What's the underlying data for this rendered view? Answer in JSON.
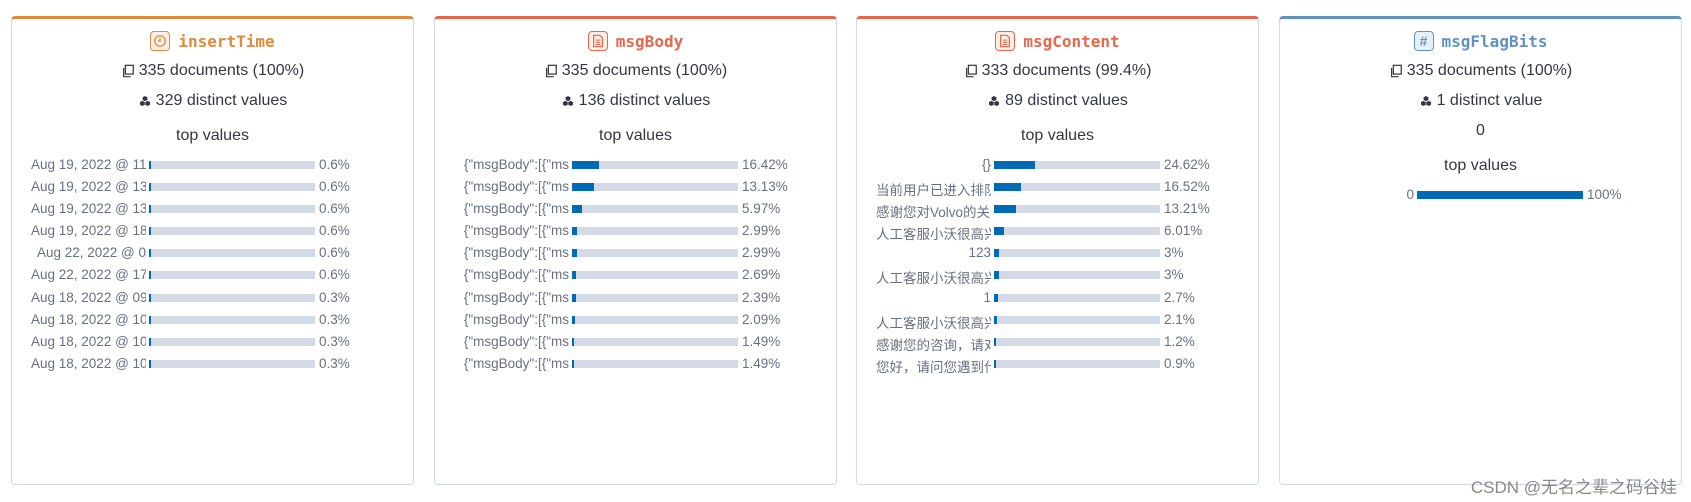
{
  "cards": [
    {
      "type": "date",
      "field": "insertTime",
      "color": "#e08a3b",
      "documents": "335 documents (100%)",
      "distinct": "329 distinct values",
      "top_values_title": "top values",
      "rows": [
        {
          "label": "Aug 19, 2022 @ 11",
          "value": 0.6,
          "value_label": "0.6%"
        },
        {
          "label": "Aug 19, 2022 @ 13",
          "value": 0.6,
          "value_label": "0.6%"
        },
        {
          "label": "Aug 19, 2022 @ 13",
          "value": 0.6,
          "value_label": "0.6%"
        },
        {
          "label": "Aug 19, 2022 @ 18",
          "value": 0.6,
          "value_label": "0.6%"
        },
        {
          "label": "Aug 22, 2022 @ 0",
          "value": 0.6,
          "value_label": "0.6%"
        },
        {
          "label": "Aug 22, 2022 @ 17",
          "value": 0.6,
          "value_label": "0.6%"
        },
        {
          "label": "Aug 18, 2022 @ 09",
          "value": 0.3,
          "value_label": "0.3%"
        },
        {
          "label": "Aug 18, 2022 @ 10",
          "value": 0.3,
          "value_label": "0.3%"
        },
        {
          "label": "Aug 18, 2022 @ 10",
          "value": 0.3,
          "value_label": "0.3%"
        },
        {
          "label": "Aug 18, 2022 @ 10",
          "value": 0.3,
          "value_label": "0.3%"
        }
      ]
    },
    {
      "type": "text",
      "field": "msgBody",
      "color": "#e7664c",
      "documents": "335 documents (100%)",
      "distinct": "136 distinct values",
      "top_values_title": "top values",
      "rows": [
        {
          "label": "{\"msgBody\":[{\"ms",
          "value": 16.42,
          "value_label": "16.42%"
        },
        {
          "label": "{\"msgBody\":[{\"ms",
          "value": 13.13,
          "value_label": "13.13%"
        },
        {
          "label": "{\"msgBody\":[{\"ms",
          "value": 5.97,
          "value_label": "5.97%"
        },
        {
          "label": "{\"msgBody\":[{\"ms",
          "value": 2.99,
          "value_label": "2.99%"
        },
        {
          "label": "{\"msgBody\":[{\"ms",
          "value": 2.99,
          "value_label": "2.99%"
        },
        {
          "label": "{\"msgBody\":[{\"ms",
          "value": 2.69,
          "value_label": "2.69%"
        },
        {
          "label": "{\"msgBody\":[{\"ms",
          "value": 2.39,
          "value_label": "2.39%"
        },
        {
          "label": "{\"msgBody\":[{\"ms",
          "value": 2.09,
          "value_label": "2.09%"
        },
        {
          "label": "{\"msgBody\":[{\"ms",
          "value": 1.49,
          "value_label": "1.49%"
        },
        {
          "label": "{\"msgBody\":[{\"ms",
          "value": 1.49,
          "value_label": "1.49%"
        }
      ]
    },
    {
      "type": "text",
      "field": "msgContent",
      "color": "#e7664c",
      "documents": "333 documents (99.4%)",
      "distinct": "89 distinct values",
      "top_values_title": "top values",
      "rows": [
        {
          "label": "{}",
          "value": 24.62,
          "value_label": "24.62%"
        },
        {
          "label": "当前用户已进入排队",
          "value": 16.52,
          "value_label": "16.52%"
        },
        {
          "label": "感谢您对Volvo的关注",
          "value": 13.21,
          "value_label": "13.21%"
        },
        {
          "label": "人工客服小沃很高兴",
          "value": 6.01,
          "value_label": "6.01%"
        },
        {
          "label": "123",
          "value": 3,
          "value_label": "3%"
        },
        {
          "label": "人工客服小沃很高兴",
          "value": 3,
          "value_label": "3%"
        },
        {
          "label": "1",
          "value": 2.7,
          "value_label": "2.7%"
        },
        {
          "label": "人工客服小沃很高兴",
          "value": 2.1,
          "value_label": "2.1%"
        },
        {
          "label": "感谢您的咨询，请对",
          "value": 1.2,
          "value_label": "1.2%"
        },
        {
          "label": "您好，请问您遇到什",
          "value": 0.9,
          "value_label": "0.9%"
        }
      ]
    },
    {
      "type": "number",
      "field": "msgFlagBits",
      "color": "#6092c0",
      "icon_label": "#",
      "documents": "335 documents (100%)",
      "distinct": "1 distinct value",
      "single_value": "0",
      "top_values_title": "top values",
      "rows": [
        {
          "label": "0",
          "value": 100,
          "value_label": "100%"
        }
      ]
    }
  ],
  "watermark": "CSDN @无名之辈之码谷娃"
}
